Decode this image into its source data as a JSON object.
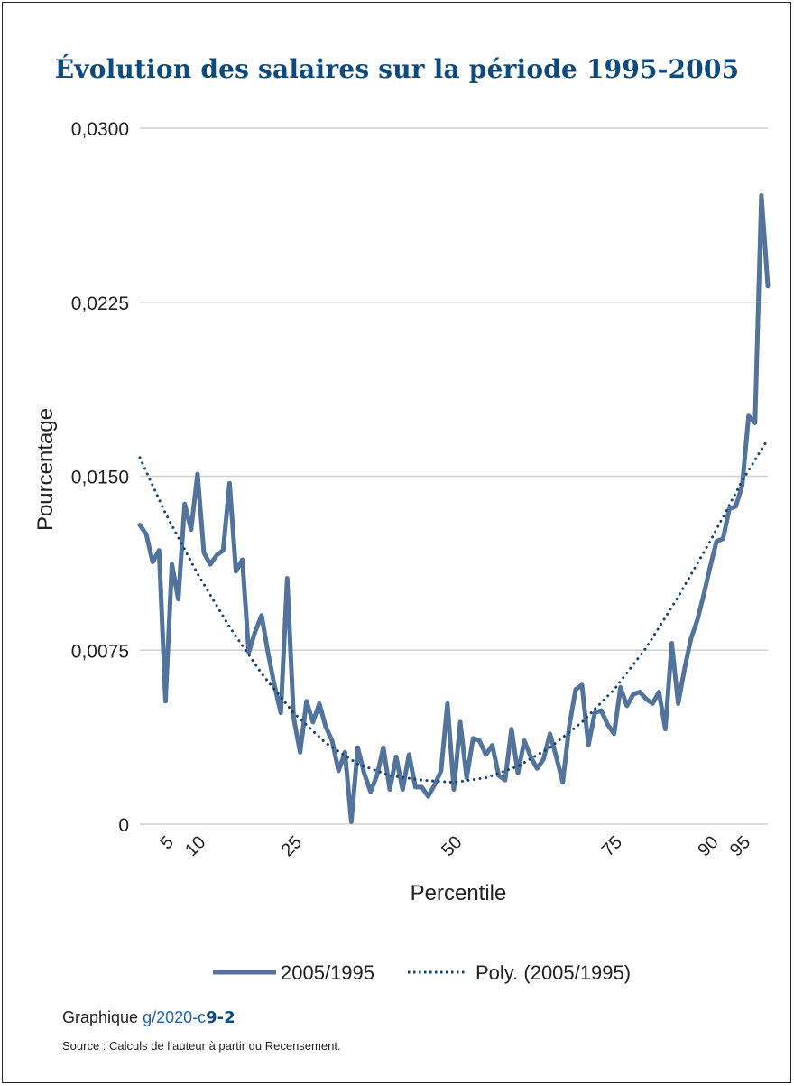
{
  "chart_data": {
    "type": "line",
    "title": "Évolution des salaires sur la période 1995-2005",
    "xlabel": "Percentile",
    "ylabel": "Pourcentage",
    "yticks": [
      "0",
      "0,0075",
      "0,0150",
      "0,0225",
      "0,0300"
    ],
    "ylim": [
      0,
      0.03
    ],
    "xticks": [
      "5",
      "10",
      "25",
      "50",
      "75",
      "90",
      "95"
    ],
    "xtick_values": [
      5,
      10,
      25,
      50,
      75,
      90,
      95
    ],
    "xlim": [
      1,
      99
    ],
    "grid": true,
    "legend": "bottom",
    "colors": {
      "series": "#52739b",
      "trend": "#13436e",
      "grid": "#cfcfcf"
    },
    "series": [
      {
        "name": "2005/1995",
        "style": "solid",
        "x": [
          1,
          2,
          3,
          4,
          5,
          6,
          7,
          8,
          9,
          10,
          11,
          12,
          13,
          14,
          15,
          16,
          17,
          18,
          19,
          20,
          21,
          22,
          23,
          24,
          25,
          26,
          27,
          28,
          29,
          30,
          31,
          32,
          33,
          34,
          35,
          36,
          37,
          38,
          39,
          40,
          41,
          42,
          43,
          44,
          45,
          46,
          47,
          48,
          49,
          50,
          51,
          52,
          53,
          54,
          55,
          56,
          57,
          58,
          59,
          60,
          61,
          62,
          63,
          64,
          65,
          66,
          67,
          68,
          69,
          70,
          71,
          72,
          73,
          74,
          75,
          76,
          77,
          78,
          79,
          80,
          81,
          82,
          83,
          84,
          85,
          86,
          87,
          88,
          89,
          90,
          91,
          92,
          93,
          94,
          95,
          96,
          97,
          98,
          99
        ],
        "values": [
          0.0129,
          0.0125,
          0.0113,
          0.0118,
          0.0053,
          0.0112,
          0.0097,
          0.0138,
          0.0127,
          0.0151,
          0.0117,
          0.0112,
          0.0116,
          0.0118,
          0.0147,
          0.0109,
          0.0114,
          0.0074,
          0.0083,
          0.009,
          0.0074,
          0.006,
          0.0048,
          0.0106,
          0.0046,
          0.0031,
          0.0053,
          0.0044,
          0.0052,
          0.0042,
          0.0036,
          0.0023,
          0.0031,
          0.0001,
          0.0033,
          0.0022,
          0.0014,
          0.0021,
          0.0033,
          0.0015,
          0.0029,
          0.0015,
          0.003,
          0.0016,
          0.0016,
          0.0012,
          0.0017,
          0.0023,
          0.0052,
          0.0015,
          0.0044,
          0.002,
          0.0037,
          0.0036,
          0.003,
          0.0034,
          0.0021,
          0.0019,
          0.0041,
          0.0022,
          0.0036,
          0.0029,
          0.0024,
          0.0028,
          0.0039,
          0.0029,
          0.0018,
          0.0042,
          0.0058,
          0.006,
          0.0034,
          0.0048,
          0.0049,
          0.0043,
          0.0039,
          0.0059,
          0.0051,
          0.0056,
          0.0057,
          0.0054,
          0.0052,
          0.0057,
          0.0041,
          0.0078,
          0.0052,
          0.0067,
          0.008,
          0.0088,
          0.0099,
          0.0111,
          0.0122,
          0.0123,
          0.0136,
          0.0137,
          0.0146,
          0.0176,
          0.0173,
          0.0271,
          0.0232
        ]
      },
      {
        "name": "Poly. (2005/1995)",
        "style": "dotted",
        "type": "polynomial-trend",
        "x": [
          1,
          5,
          10,
          15,
          20,
          25,
          30,
          35,
          40,
          45,
          50,
          55,
          60,
          65,
          70,
          75,
          80,
          85,
          90,
          95,
          99
        ],
        "values": [
          0.0158,
          0.0134,
          0.0108,
          0.0085,
          0.0065,
          0.0048,
          0.0035,
          0.0026,
          0.0021,
          0.0019,
          0.0018,
          0.002,
          0.0025,
          0.0033,
          0.0044,
          0.0058,
          0.0076,
          0.0098,
          0.0122,
          0.0148,
          0.0166
        ]
      }
    ]
  },
  "caption": {
    "prefix": "Graphique ",
    "link": "g/2020-c",
    "link_bold": "9-2"
  },
  "source": "Source : Calculs de l’auteur à partir du Recensement."
}
